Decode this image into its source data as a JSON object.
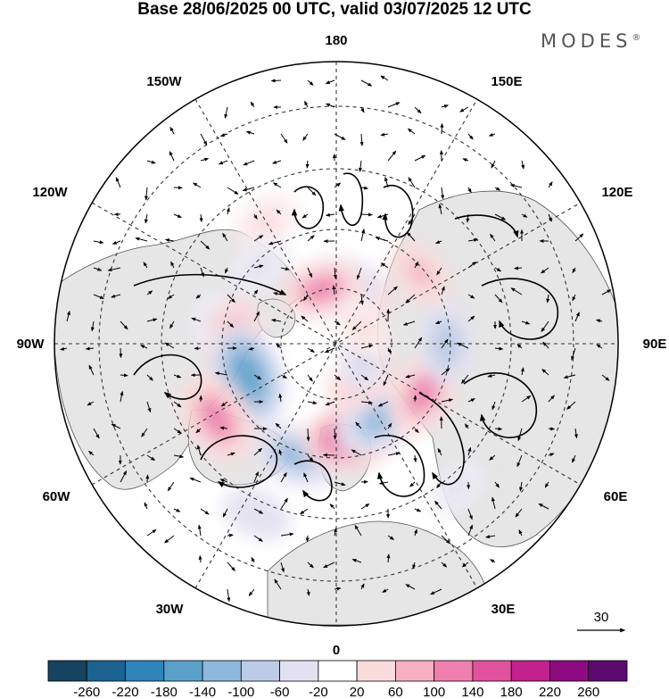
{
  "title": "Base 28/06/2025 00 UTC, valid 03/07/2025 12 UTC",
  "brand": "MODES",
  "brand_mark": "®",
  "longitude_labels": {
    "top": "180",
    "bottom": "0",
    "left": "90W",
    "right": "90E",
    "upper_left_1": "150W",
    "upper_left_2": "120W",
    "upper_right_1": "150E",
    "upper_right_2": "120E",
    "lower_left_1": "60W",
    "lower_left_2": "30W",
    "lower_right_1": "60E",
    "lower_right_2": "30E"
  },
  "vector_scale": "30",
  "colorbar": {
    "ticks": [
      "-260",
      "-220",
      "-180",
      "-140",
      "-100",
      "-60",
      "-20",
      "20",
      "60",
      "100",
      "140",
      "180",
      "220",
      "260"
    ],
    "colors": [
      "#16435f",
      "#1c6391",
      "#2f84ba",
      "#5ba0cb",
      "#8fb8dd",
      "#bccce8",
      "#e3e1f1",
      "#ffffff",
      "#fbdcdc",
      "#f6b0c2",
      "#ef7fae",
      "#e2519e",
      "#c2218e",
      "#8e0b82",
      "#5c0a6f"
    ]
  },
  "anomaly_cells": [
    {
      "lon": -150,
      "lat": 45,
      "value": 50
    },
    {
      "lon": -100,
      "lat": 50,
      "value": -40
    },
    {
      "lon": -90,
      "lat": 58,
      "value": 160
    },
    {
      "lon": -70,
      "lat": 60,
      "value": -220
    },
    {
      "lon": -58,
      "lat": 45,
      "value": 180
    },
    {
      "lon": -20,
      "lat": 52,
      "value": -150
    },
    {
      "lon": 10,
      "lat": 60,
      "value": 200
    },
    {
      "lon": 30,
      "lat": 62,
      "value": -170
    },
    {
      "lon": 60,
      "lat": 58,
      "value": 150
    },
    {
      "lon": 90,
      "lat": 55,
      "value": -110
    },
    {
      "lon": 130,
      "lat": 55,
      "value": 80
    },
    {
      "lon": 160,
      "lat": 72,
      "value": 120
    },
    {
      "lon": 180,
      "lat": 72,
      "value": -160
    },
    {
      "lon": -165,
      "lat": 72,
      "value": 130
    },
    {
      "lon": 35,
      "lat": 76,
      "value": 100
    },
    {
      "lon": 70,
      "lat": 80,
      "value": -80
    },
    {
      "lon": 120,
      "lat": 80,
      "value": 60
    },
    {
      "lon": -25,
      "lat": 30,
      "value": -70
    },
    {
      "lon": 40,
      "lat": 30,
      "value": -40
    },
    {
      "lon": -135,
      "lat": 55,
      "value": -60
    }
  ]
}
